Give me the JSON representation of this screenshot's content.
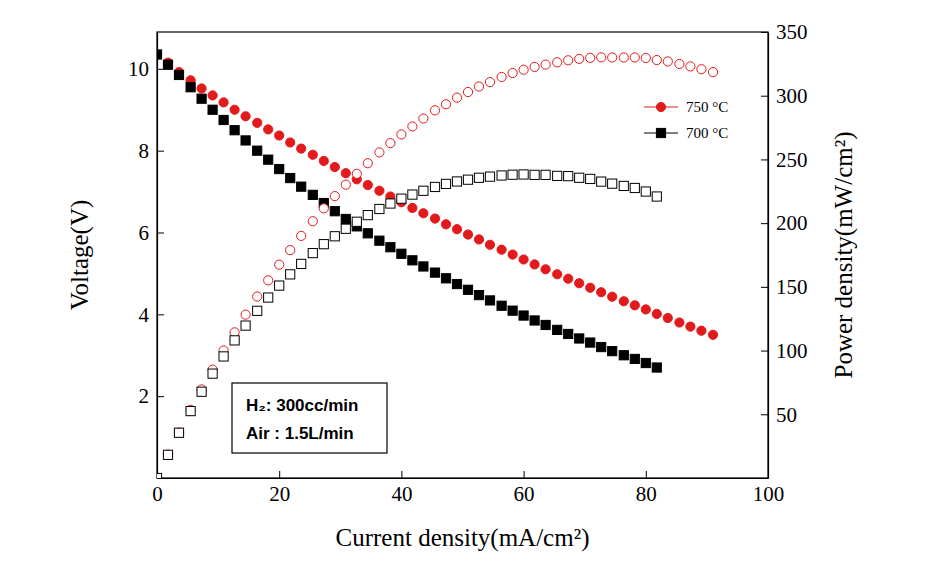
{
  "chart_data": {
    "type": "scatter",
    "xlabel": "Current density(mA/cm²)",
    "ylabel": "Voltage(V)",
    "y2label": "Power density(mW/cm²)",
    "xlim": [
      0,
      100
    ],
    "xticks": [
      0,
      20,
      40,
      60,
      80,
      100
    ],
    "ylim": [
      0,
      10.9
    ],
    "yticks": [
      2,
      4,
      6,
      8,
      10
    ],
    "y2lim": [
      0,
      350
    ],
    "y2ticks": [
      50,
      100,
      150,
      200,
      250,
      300,
      350
    ],
    "legend": "upper right",
    "annotations": [
      "H₂: 300cc/min",
      "Air : 1.5L/min"
    ],
    "series": [
      {
        "name": "750 °C",
        "color": "#e31a1c",
        "marker": "circle",
        "x": [
          0,
          1.8,
          3.6,
          5.5,
          7.3,
          9.1,
          10.9,
          12.7,
          14.5,
          16.4,
          18.2,
          20,
          21.8,
          23.6,
          25.5,
          27.3,
          29.1,
          30.9,
          32.7,
          34.5,
          36.4,
          38.2,
          40,
          41.8,
          43.6,
          45.5,
          47.3,
          49.1,
          50.9,
          52.7,
          54.5,
          56.4,
          58.2,
          60,
          61.8,
          63.6,
          65.5,
          67.3,
          69.1,
          70.9,
          72.7,
          74.5,
          76.4,
          78.2,
          80,
          81.8,
          83.6,
          85.5,
          87.3,
          89.1,
          91
        ],
        "values": [
          10.35,
          10.15,
          9.92,
          9.72,
          9.52,
          9.35,
          9.18,
          9.0,
          8.84,
          8.68,
          8.52,
          8.37,
          8.2,
          8.05,
          7.9,
          7.75,
          7.6,
          7.45,
          7.3,
          7.16,
          7.02,
          6.88,
          6.74,
          6.6,
          6.47,
          6.34,
          6.2,
          6.08,
          5.95,
          5.83,
          5.7,
          5.58,
          5.46,
          5.34,
          5.22,
          5.1,
          4.98,
          4.87,
          4.76,
          4.65,
          4.54,
          4.43,
          4.32,
          4.22,
          4.12,
          4.01,
          3.91,
          3.8,
          3.7,
          3.6,
          3.5
        ]
      },
      {
        "name": "700 °C",
        "color": "#000000",
        "marker": "square",
        "x": [
          0,
          1.8,
          3.6,
          5.5,
          7.3,
          9.1,
          10.9,
          12.7,
          14.5,
          16.4,
          18.2,
          20,
          21.8,
          23.6,
          25.5,
          27.3,
          29.1,
          30.9,
          32.7,
          34.5,
          36.4,
          38.2,
          40,
          41.8,
          43.6,
          45.5,
          47.3,
          49.1,
          50.9,
          52.7,
          54.5,
          56.4,
          58.2,
          60,
          61.8,
          63.6,
          65.5,
          67.3,
          69.1,
          70.9,
          72.7,
          74.5,
          76.4,
          78.2,
          80,
          81.8
        ],
        "values": [
          10.35,
          10.1,
          9.85,
          9.55,
          9.27,
          9.0,
          8.75,
          8.5,
          8.25,
          8.0,
          7.78,
          7.55,
          7.33,
          7.12,
          6.92,
          6.72,
          6.52,
          6.33,
          6.15,
          5.98,
          5.8,
          5.64,
          5.48,
          5.32,
          5.17,
          5.02,
          4.88,
          4.74,
          4.6,
          4.47,
          4.34,
          4.21,
          4.09,
          3.97,
          3.85,
          3.74,
          3.62,
          3.52,
          3.41,
          3.31,
          3.2,
          3.1,
          3.0,
          2.91,
          2.81,
          2.7
        ]
      },
      {
        "color": "#e31a1c",
        "marker": "open-circle",
        "axis": "y2",
        "x": [
          0,
          1.8,
          3.6,
          5.5,
          7.3,
          9.1,
          10.9,
          12.7,
          14.5,
          16.4,
          18.2,
          20,
          21.8,
          23.6,
          25.5,
          27.3,
          29.1,
          30.9,
          32.7,
          34.5,
          36.4,
          38.2,
          40,
          41.8,
          43.6,
          45.5,
          47.3,
          49.1,
          50.9,
          52.7,
          54.5,
          56.4,
          58.2,
          60,
          61.8,
          63.6,
          65.5,
          67.3,
          69.1,
          70.9,
          72.7,
          74.5,
          76.4,
          78.2,
          80,
          81.8,
          83.6,
          85.5,
          87.3,
          89.1,
          91
        ],
        "values": [
          0,
          18.3,
          35.7,
          53.5,
          69.5,
          85.1,
          100.1,
          114.3,
          128.2,
          142.4,
          155.1,
          167.4,
          178.8,
          190,
          201.5,
          211.6,
          221.2,
          230.2,
          238.7,
          247,
          255.5,
          262.8,
          269.6,
          275.9,
          282.1,
          288.5,
          293.3,
          298.5,
          302.9,
          307.2,
          310.7,
          314.7,
          317.8,
          320.4,
          322.6,
          324.4,
          326.2,
          327.8,
          328.9,
          329.7,
          330.1,
          330,
          330,
          330,
          329.6,
          328,
          326.9,
          324.9,
          323,
          320.8,
          318.5
        ]
      },
      {
        "color": "#000000",
        "marker": "open-square",
        "axis": "y2",
        "x": [
          0,
          1.8,
          3.6,
          5.5,
          7.3,
          9.1,
          10.9,
          12.7,
          14.5,
          16.4,
          18.2,
          20,
          21.8,
          23.6,
          25.5,
          27.3,
          29.1,
          30.9,
          32.7,
          34.5,
          36.4,
          38.2,
          40,
          41.8,
          43.6,
          45.5,
          47.3,
          49.1,
          50.9,
          52.7,
          54.5,
          56.4,
          58.2,
          60,
          61.8,
          63.6,
          65.5,
          67.3,
          69.1,
          70.9,
          72.7,
          74.5,
          76.4,
          78.2,
          80,
          81.8
        ],
        "values": [
          0,
          18.2,
          35.5,
          52.5,
          67.7,
          81.9,
          95.4,
          108,
          119.6,
          131.2,
          141.6,
          151,
          159.8,
          168,
          176.5,
          183.5,
          189.7,
          195.6,
          201.1,
          206.3,
          211.1,
          215.4,
          219.2,
          222.4,
          225.4,
          228.4,
          230.8,
          232.7,
          234.1,
          235.6,
          236.5,
          237.4,
          238,
          238.2,
          237.9,
          237.9,
          237.1,
          236.9,
          235.6,
          234.7,
          232.6,
          231,
          229.2,
          227.6,
          224.8,
          220.9
        ]
      }
    ]
  }
}
